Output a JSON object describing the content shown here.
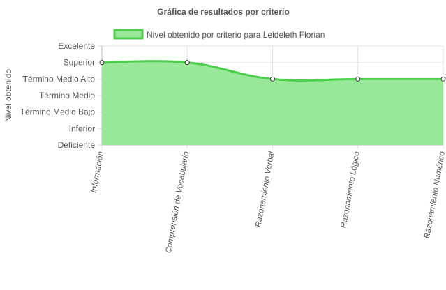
{
  "chart_data": {
    "type": "area",
    "title": "Gráfica de resultados por criterio",
    "ylabel": "Nivel obtenido",
    "xlabel": "",
    "categories": [
      "Información",
      "Comprensión de Vocabulario",
      "Razonamiento Verbal",
      "Razonamiento Lógico",
      "Razonamiento Numérico"
    ],
    "y_levels": [
      "Deficiente",
      "Inferior",
      "Término Medio Bajo",
      "Término Medio",
      "Término Medio Alto",
      "Superior",
      "Excelente"
    ],
    "series": [
      {
        "name": "Nivel obtenido por criterio para Leideleth Florian",
        "values": [
          5,
          5,
          4,
          4,
          4
        ]
      }
    ],
    "ylim": [
      0,
      6
    ],
    "grid": true,
    "legend_position": "top-center",
    "colors": {
      "line": "#4cce4c",
      "fill": "#99e799",
      "grid": "#e2e2e2",
      "axis": "#bdbdbd",
      "point_fill": "#ffffff",
      "point_stroke": "#333333"
    }
  }
}
